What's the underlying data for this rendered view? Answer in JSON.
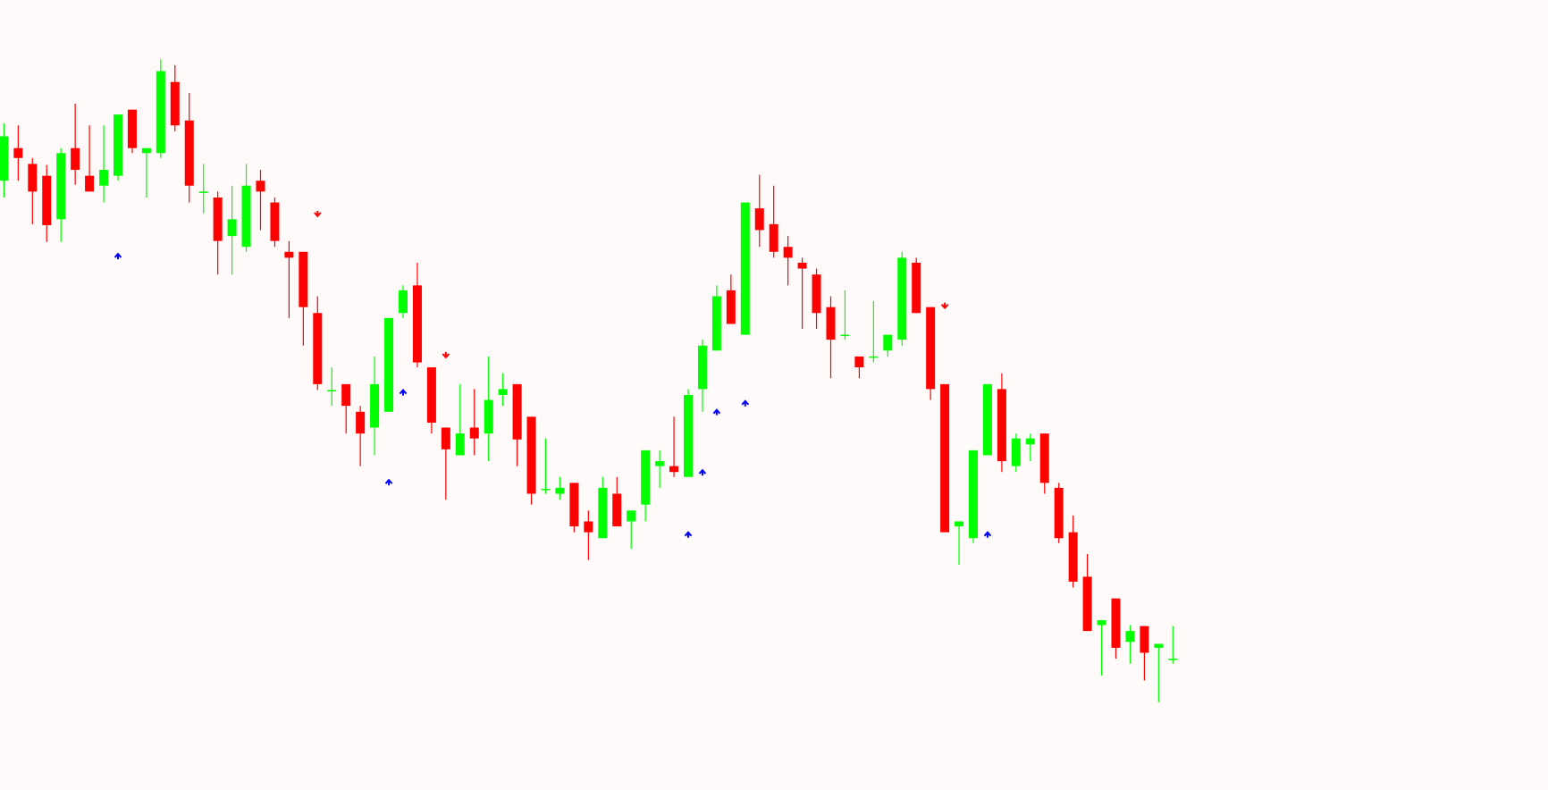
{
  "chart_data": {
    "type": "candlestick",
    "ylim": [
      0,
      800
    ],
    "up_color": "#00ff00",
    "down_color": "#ff0000",
    "buy_color": "#0000ff",
    "sell_color": "#ff0000",
    "open": [
      617,
      650,
      634,
      622,
      578,
      650,
      622,
      612,
      622,
      689,
      645,
      645,
      717,
      678,
      606,
      600,
      561,
      550,
      617,
      595,
      545,
      545,
      483,
      405,
      411,
      383,
      367,
      383,
      483,
      511,
      428,
      367,
      339,
      367,
      361,
      400,
      411,
      378,
      305,
      300,
      311,
      272,
      255,
      300,
      272,
      289,
      328,
      328,
      317,
      406,
      445,
      506,
      461,
      589,
      573,
      550,
      534,
      522,
      489,
      461,
      439,
      439,
      445,
      456,
      534,
      489,
      411,
      267,
      255,
      339,
      406,
      328,
      350,
      361,
      306,
      261,
      216,
      167,
      194,
      150,
      166,
      144,
      133
    ],
    "high": [
      675,
      673,
      640,
      633,
      650,
      695,
      673,
      673,
      684,
      689,
      650,
      740,
      734,
      706,
      634,
      606,
      612,
      634,
      628,
      600,
      556,
      545,
      500,
      428,
      411,
      389,
      439,
      478,
      511,
      534,
      428,
      367,
      411,
      406,
      439,
      422,
      411,
      378,
      356,
      317,
      311,
      283,
      317,
      317,
      283,
      344,
      344,
      378,
      406,
      456,
      511,
      522,
      595,
      623,
      612,
      561,
      539,
      528,
      500,
      506,
      439,
      495,
      461,
      545,
      539,
      489,
      411,
      272,
      344,
      411,
      422,
      361,
      361,
      361,
      311,
      278,
      239,
      172,
      194,
      167,
      166,
      148,
      166
    ],
    "low": [
      600,
      617,
      573,
      555,
      555,
      613,
      606,
      595,
      617,
      645,
      600,
      640,
      667,
      595,
      584,
      522,
      522,
      545,
      567,
      550,
      478,
      450,
      405,
      389,
      361,
      328,
      339,
      383,
      478,
      428,
      361,
      294,
      339,
      339,
      333,
      389,
      328,
      289,
      300,
      294,
      261,
      233,
      255,
      267,
      244,
      272,
      306,
      317,
      317,
      383,
      445,
      472,
      461,
      550,
      539,
      511,
      467,
      467,
      417,
      456,
      417,
      433,
      439,
      450,
      483,
      395,
      261,
      228,
      250,
      339,
      322,
      322,
      333,
      300,
      250,
      205,
      161,
      116,
      133,
      128,
      111,
      89,
      128
    ],
    "close": [
      662,
      640,
      606,
      572,
      645,
      628,
      606,
      628,
      684,
      650,
      650,
      728,
      673,
      612,
      606,
      556,
      578,
      612,
      606,
      556,
      539,
      489,
      411,
      405,
      389,
      361,
      411,
      478,
      506,
      433,
      372,
      345,
      361,
      356,
      395,
      406,
      355,
      300,
      305,
      306,
      267,
      261,
      306,
      267,
      283,
      344,
      333,
      322,
      400,
      450,
      500,
      472,
      595,
      567,
      545,
      539,
      528,
      483,
      456,
      461,
      428,
      439,
      461,
      539,
      483,
      406,
      261,
      272,
      344,
      411,
      333,
      356,
      356,
      311,
      255,
      211,
      161,
      172,
      144,
      161,
      139,
      148,
      133
    ],
    "buy_signals": [
      null,
      null,
      null,
      null,
      null,
      null,
      null,
      null,
      542,
      null,
      null,
      null,
      null,
      null,
      null,
      null,
      null,
      null,
      null,
      null,
      null,
      null,
      null,
      null,
      null,
      null,
      null,
      313,
      404,
      null,
      null,
      null,
      null,
      null,
      null,
      null,
      null,
      null,
      null,
      null,
      null,
      null,
      null,
      null,
      null,
      null,
      null,
      null,
      260,
      323,
      384,
      null,
      393,
      null,
      null,
      null,
      null,
      null,
      null,
      null,
      null,
      null,
      null,
      null,
      null,
      null,
      null,
      null,
      null,
      260,
      null,
      null,
      null,
      null,
      null,
      null,
      null,
      null,
      null,
      null,
      null,
      null,
      null
    ],
    "sell_signals": [
      null,
      null,
      null,
      null,
      null,
      null,
      null,
      null,
      null,
      null,
      null,
      null,
      null,
      null,
      null,
      null,
      null,
      null,
      null,
      null,
      null,
      null,
      582,
      null,
      null,
      null,
      null,
      null,
      null,
      null,
      null,
      439,
      null,
      null,
      null,
      null,
      null,
      null,
      null,
      null,
      null,
      null,
      null,
      null,
      null,
      null,
      null,
      null,
      null,
      null,
      null,
      null,
      null,
      null,
      null,
      null,
      null,
      null,
      null,
      null,
      null,
      null,
      null,
      null,
      null,
      null,
      489,
      null,
      null,
      null,
      null,
      null,
      null,
      null,
      null,
      null,
      null,
      null,
      null,
      null,
      null,
      null,
      null
    ]
  }
}
